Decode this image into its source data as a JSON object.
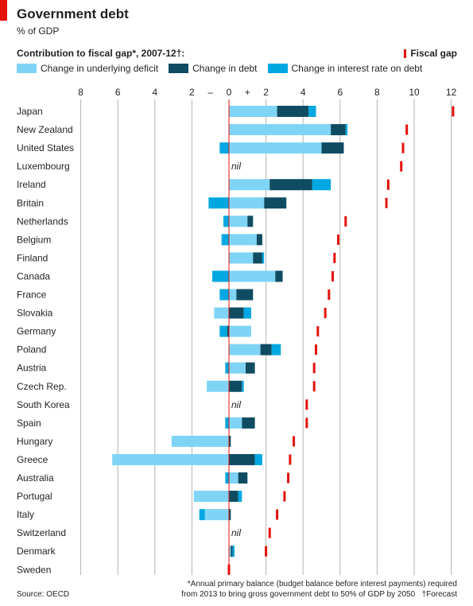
{
  "header": {
    "title": "Government debt",
    "subtitle": "% of GDP"
  },
  "chart_data": {
    "type": "bar",
    "title": "Contribution to fiscal gap*, 2007-12†:",
    "orientation": "horizontal-stacked",
    "xlim": [
      -8,
      12
    ],
    "x_ticks": [
      {
        "value": -8,
        "label": "8"
      },
      {
        "value": -6,
        "label": "6"
      },
      {
        "value": -4,
        "label": "4"
      },
      {
        "value": -2,
        "label": "2"
      },
      {
        "value": 0,
        "label": "0"
      },
      {
        "value": 2,
        "label": "2"
      },
      {
        "value": 4,
        "label": "4"
      },
      {
        "value": 6,
        "label": "6"
      },
      {
        "value": 8,
        "label": "8"
      },
      {
        "value": 10,
        "label": "10"
      },
      {
        "value": 12,
        "label": "12"
      }
    ],
    "sign_labels": {
      "minus": "–",
      "plus": "+"
    },
    "grid": true,
    "nil_label": "nil",
    "categories": [
      "Japan",
      "New Zealand",
      "United States",
      "Luxembourg",
      "Ireland",
      "Britain",
      "Netherlands",
      "Belgium",
      "Finland",
      "Canada",
      "France",
      "Slovakia",
      "Germany",
      "Poland",
      "Austria",
      "Czech Rep.",
      "South Korea",
      "Spain",
      "Hungary",
      "Greece",
      "Australia",
      "Portugal",
      "Italy",
      "Switzerland",
      "Denmark",
      "Sweden"
    ],
    "nil_categories": [
      "Luxembourg",
      "South Korea",
      "Switzerland"
    ],
    "series": [
      {
        "name": "Change in underlying deficit",
        "color": "#7fd4f5",
        "values": [
          2.6,
          5.5,
          5.0,
          0,
          2.2,
          1.9,
          1.0,
          1.5,
          1.3,
          2.5,
          0.4,
          -0.8,
          1.2,
          1.7,
          0.9,
          -1.2,
          0,
          0.7,
          -3.1,
          -6.3,
          0.5,
          -1.9,
          -1.3,
          0,
          0.1,
          0
        ]
      },
      {
        "name": "Change in debt",
        "color": "#0f4c62",
        "values": [
          1.7,
          0.8,
          1.2,
          0,
          2.3,
          1.2,
          0.3,
          0.3,
          0.5,
          0.4,
          0.9,
          0.8,
          -0.1,
          0.6,
          0.5,
          0.7,
          0,
          0.7,
          0.1,
          1.4,
          0.5,
          0.5,
          0.1,
          0,
          0.1,
          0
        ]
      },
      {
        "name": "Change in interest rate on debt",
        "color": "#00a7e1",
        "values": [
          0.4,
          0.1,
          -0.5,
          0,
          1.0,
          -1.1,
          -0.3,
          -0.4,
          0.1,
          -0.9,
          -0.5,
          0.4,
          -0.4,
          0.5,
          -0.2,
          0.1,
          0,
          -0.2,
          0,
          0.4,
          -0.2,
          0.2,
          -0.3,
          0,
          0.1,
          0
        ]
      }
    ],
    "fiscal_gap": {
      "name": "Fiscal gap",
      "color": "#e3120b",
      "values": [
        12.1,
        9.6,
        9.4,
        9.3,
        8.6,
        8.5,
        6.3,
        5.9,
        5.7,
        5.6,
        5.4,
        5.2,
        4.8,
        4.7,
        4.6,
        4.6,
        4.2,
        4.2,
        3.5,
        3.3,
        3.2,
        3.0,
        2.6,
        2.2,
        2.0,
        0
      ]
    },
    "legend_placement": "top"
  },
  "notes": {
    "source": "Source: OECD",
    "footnote_line1": "*Annual primary balance (budget balance before interest payments) required",
    "footnote_line2": "from 2013 to bring gross government debt to 50% of GDP by 2050",
    "footnote_forecast": "†Forecast"
  }
}
